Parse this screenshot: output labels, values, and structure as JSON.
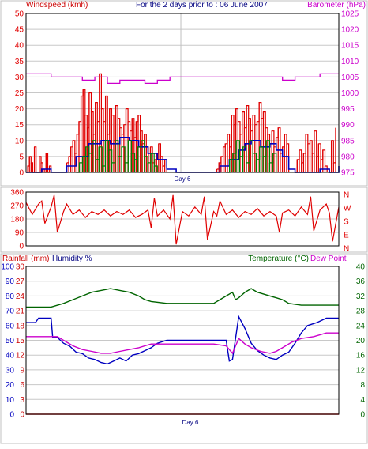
{
  "colors": {
    "wind_gust": "#e00000",
    "wind_avg": "#0000c0",
    "wind_min": "#008000",
    "barometer": "#cc00cc",
    "direction": "#e00000",
    "rain": "#cc0000",
    "humidity": "#0000c0",
    "temperature": "#006400",
    "dew_point": "#cc00cc",
    "frame": "#000000",
    "grid": "#c8c8c8",
    "midline": "#c0c0c0"
  },
  "chart_data": [
    {
      "type": "line",
      "title": "For the 2 days prior to : 06 June 2007",
      "ylabel": "Windspeed (kmh)",
      "y2label": "Barometer (hPa)",
      "x_marker": "Day 6",
      "ylim": [
        0,
        50
      ],
      "yticks": [
        0,
        5,
        10,
        15,
        20,
        25,
        30,
        35,
        40,
        45,
        50
      ],
      "y2lim": [
        975,
        1025
      ],
      "y2ticks": [
        975,
        980,
        985,
        990,
        995,
        1000,
        1005,
        1010,
        1015,
        1020,
        1025
      ],
      "grid": true,
      "series": [
        {
          "key": "gust",
          "color_key": "wind_gust",
          "style": "bars",
          "segments": [
            {
              "from": 0.0,
              "to": 0.08,
              "values": [
                0,
                2,
                5,
                3,
                0,
                8,
                0,
                0,
                5,
                3,
                1,
                0,
                6,
                0,
                2,
                0
              ]
            },
            {
              "from": 0.13,
              "to": 0.45,
              "values": [
                3,
                5,
                8,
                10,
                6,
                12,
                16,
                24,
                26,
                18,
                14,
                25,
                19,
                12,
                22,
                16,
                31,
                20,
                16,
                24,
                12,
                20,
                18,
                10,
                21,
                17,
                14,
                12,
                15,
                20,
                16,
                13,
                17,
                11,
                16,
                18,
                13,
                9,
                12,
                8,
                6,
                8,
                3,
                4,
                6,
                9,
                5,
                2,
                4,
                1
              ]
            },
            {
              "from": 0.61,
              "to": 0.84,
              "values": [
                1,
                3,
                5,
                8,
                9,
                12,
                8,
                18,
                15,
                20,
                16,
                12,
                19,
                14,
                21,
                17,
                13,
                18,
                15,
                16,
                22,
                17,
                19,
                14,
                12,
                9,
                13,
                8,
                11,
                14,
                6,
                8,
                12,
                9,
                4
              ]
            },
            {
              "from": 0.86,
              "to": 0.99,
              "values": [
                0,
                4,
                7,
                3,
                6,
                12,
                9,
                10,
                6,
                13,
                5,
                9,
                4,
                7,
                2,
                1,
                0,
                10,
                3,
                14
              ]
            }
          ]
        },
        {
          "key": "average",
          "color_key": "wind_avg",
          "style": "line",
          "x": [
            0.0,
            0.05,
            0.08,
            0.1,
            0.13,
            0.16,
            0.2,
            0.24,
            0.27,
            0.3,
            0.33,
            0.36,
            0.39,
            0.42,
            0.45,
            0.48,
            0.6,
            0.62,
            0.65,
            0.68,
            0.7,
            0.72,
            0.75,
            0.78,
            0.8,
            0.82,
            0.84,
            0.86,
            0.9,
            0.94,
            0.97,
            1.0
          ],
          "y": [
            0,
            1,
            0,
            0,
            2,
            5,
            9,
            10,
            9,
            11,
            10,
            8,
            6,
            4,
            1,
            0,
            0,
            2,
            4,
            7,
            9,
            10,
            8,
            9,
            7,
            5,
            1,
            0,
            0,
            1,
            0,
            2
          ]
        },
        {
          "key": "minimum",
          "color_key": "wind_min",
          "style": "bars",
          "segments": [
            {
              "from": 0.16,
              "to": 0.42,
              "values": [
                0,
                3,
                5,
                8,
                6,
                10,
                4,
                8,
                2,
                10,
                7,
                3,
                10,
                5,
                8,
                3,
                10,
                6,
                4,
                8,
                10,
                5,
                3,
                6,
                2,
                0
              ]
            },
            {
              "from": 0.64,
              "to": 0.8,
              "values": [
                0,
                4,
                6,
                10,
                5,
                8,
                3,
                10,
                6,
                4,
                8,
                5,
                10,
                3,
                6,
                0
              ]
            }
          ]
        },
        {
          "key": "barometer",
          "axis": "right",
          "color_key": "barometer",
          "style": "line",
          "x": [
            0.0,
            0.03,
            0.08,
            0.12,
            0.18,
            0.22,
            0.26,
            0.3,
            0.34,
            0.38,
            0.42,
            0.46,
            0.5,
            0.54,
            0.6,
            0.66,
            0.7,
            0.74,
            0.78,
            0.82,
            0.86,
            0.9,
            0.94,
            0.98,
            1.0
          ],
          "y": [
            1006,
            1006,
            1005,
            1005,
            1004,
            1005,
            1003,
            1004,
            1004,
            1003,
            1004,
            1005,
            1005,
            1005,
            1005,
            1005,
            1005,
            1005,
            1005,
            1004,
            1005,
            1005,
            1006,
            1006,
            1006
          ]
        }
      ]
    },
    {
      "type": "line",
      "ylim": [
        0,
        360
      ],
      "yticks": [
        0,
        90,
        180,
        270,
        360
      ],
      "compass": [
        "N",
        "W",
        "S",
        "E",
        "N"
      ],
      "grid": true,
      "series": [
        {
          "key": "direction",
          "color_key": "direction",
          "x": [
            0.0,
            0.02,
            0.04,
            0.05,
            0.06,
            0.08,
            0.09,
            0.1,
            0.12,
            0.13,
            0.15,
            0.17,
            0.19,
            0.21,
            0.23,
            0.25,
            0.27,
            0.29,
            0.31,
            0.33,
            0.35,
            0.37,
            0.39,
            0.4,
            0.41,
            0.42,
            0.44,
            0.46,
            0.47,
            0.48,
            0.5,
            0.52,
            0.54,
            0.56,
            0.57,
            0.58,
            0.6,
            0.61,
            0.62,
            0.64,
            0.66,
            0.68,
            0.7,
            0.72,
            0.74,
            0.76,
            0.78,
            0.8,
            0.81,
            0.82,
            0.84,
            0.86,
            0.88,
            0.9,
            0.91,
            0.92,
            0.94,
            0.96,
            0.97,
            0.98,
            1.0
          ],
          "y": [
            290,
            210,
            280,
            300,
            150,
            260,
            340,
            90,
            230,
            280,
            210,
            240,
            190,
            230,
            210,
            240,
            200,
            230,
            210,
            240,
            190,
            210,
            240,
            120,
            320,
            200,
            240,
            180,
            340,
            10,
            230,
            200,
            260,
            210,
            330,
            40,
            230,
            200,
            300,
            210,
            240,
            190,
            230,
            210,
            250,
            200,
            230,
            200,
            90,
            220,
            240,
            200,
            260,
            210,
            330,
            100,
            240,
            280,
            220,
            30,
            260
          ]
        }
      ]
    },
    {
      "type": "line",
      "x_marker": "Day 6",
      "left_label_rain": "Rainfall (mm)",
      "left_label_humidity": "Humidity %",
      "right_label_temp": "Temperature (°C)",
      "right_label_dew": "Dew Point",
      "rain_ticks": [
        0,
        3,
        6,
        9,
        12,
        15,
        18,
        21,
        24,
        27,
        30
      ],
      "humidity_ticks": [
        0,
        10,
        20,
        30,
        40,
        50,
        60,
        70,
        80,
        90,
        100
      ],
      "temp_ticks": [
        0,
        4,
        8,
        12,
        16,
        20,
        24,
        28,
        32,
        36,
        40
      ],
      "grid": true,
      "series": [
        {
          "key": "temperature",
          "axis": "temp",
          "color_key": "temperature",
          "x": [
            0.0,
            0.08,
            0.12,
            0.15,
            0.18,
            0.21,
            0.24,
            0.27,
            0.3,
            0.33,
            0.36,
            0.38,
            0.4,
            0.45,
            0.55,
            0.6,
            0.62,
            0.64,
            0.66,
            0.67,
            0.68,
            0.7,
            0.72,
            0.74,
            0.76,
            0.78,
            0.8,
            0.82,
            0.84,
            0.88,
            0.92,
            0.96,
            1.0
          ],
          "y": [
            29,
            29,
            30,
            31,
            32,
            33,
            33.5,
            34,
            33.5,
            33,
            32,
            31,
            30.5,
            30,
            30,
            30,
            31,
            32,
            33,
            31,
            31.5,
            33,
            34,
            33,
            32.5,
            32,
            31.5,
            31,
            30,
            29.5,
            29.5,
            29.5,
            29.5
          ]
        },
        {
          "key": "humidity",
          "axis": "humidity",
          "color_key": "humidity",
          "x": [
            0.0,
            0.03,
            0.04,
            0.08,
            0.085,
            0.1,
            0.12,
            0.14,
            0.16,
            0.18,
            0.2,
            0.22,
            0.24,
            0.26,
            0.28,
            0.3,
            0.32,
            0.34,
            0.36,
            0.38,
            0.4,
            0.42,
            0.45,
            0.5,
            0.55,
            0.6,
            0.64,
            0.65,
            0.66,
            0.68,
            0.7,
            0.72,
            0.74,
            0.76,
            0.78,
            0.8,
            0.82,
            0.84,
            0.86,
            0.88,
            0.9,
            0.93,
            0.96,
            1.0
          ],
          "y": [
            62,
            62,
            65,
            65,
            52,
            52,
            48,
            46,
            42,
            41,
            38,
            37,
            35,
            34,
            36,
            38,
            36,
            40,
            41,
            43,
            45,
            48,
            50,
            50,
            50,
            50,
            50,
            36,
            37,
            66,
            58,
            48,
            43,
            40,
            38,
            37,
            40,
            42,
            48,
            55,
            60,
            62,
            65,
            65
          ]
        },
        {
          "key": "dew_point",
          "axis": "temp",
          "color_key": "dew_point",
          "x": [
            0.0,
            0.1,
            0.12,
            0.15,
            0.18,
            0.21,
            0.24,
            0.27,
            0.3,
            0.33,
            0.36,
            0.38,
            0.4,
            0.45,
            0.55,
            0.6,
            0.64,
            0.66,
            0.68,
            0.7,
            0.72,
            0.75,
            0.78,
            0.8,
            0.82,
            0.85,
            0.88,
            0.92,
            0.96,
            1.0
          ],
          "y": [
            21,
            21,
            20,
            18.5,
            17.5,
            17,
            16.5,
            16.5,
            17,
            17.5,
            18,
            18.5,
            19,
            19,
            19,
            19,
            18.5,
            16.5,
            20.5,
            19,
            18,
            17,
            16.5,
            17,
            18,
            19.5,
            20.5,
            21,
            22,
            22
          ]
        },
        {
          "key": "rainfall",
          "axis": "rain",
          "color_key": "rain",
          "x": [
            0.0,
            1.0
          ],
          "y": [
            0,
            0
          ]
        }
      ]
    }
  ]
}
